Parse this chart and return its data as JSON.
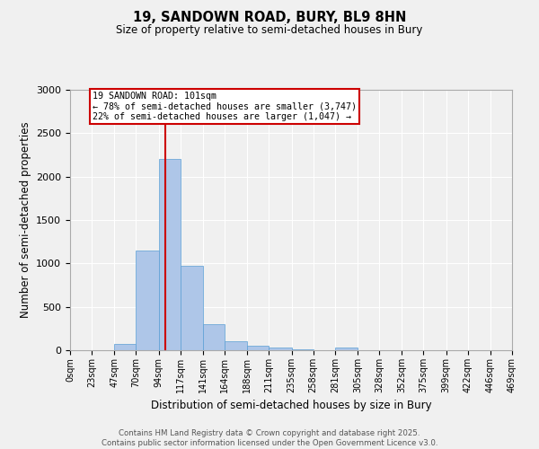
{
  "title": "19, SANDOWN ROAD, BURY, BL9 8HN",
  "subtitle": "Size of property relative to semi-detached houses in Bury",
  "xlabel": "Distribution of semi-detached houses by size in Bury",
  "ylabel": "Number of semi-detached properties",
  "property_size": 101,
  "property_label": "19 SANDOWN ROAD: 101sqm",
  "pct_smaller": 78,
  "pct_larger": 22,
  "count_smaller": "3,747",
  "count_larger": "1,047",
  "bin_edges": [
    0,
    23,
    47,
    70,
    94,
    117,
    141,
    164,
    188,
    211,
    235,
    258,
    281,
    305,
    328,
    352,
    375,
    399,
    422,
    446,
    469
  ],
  "bar_heights": [
    0,
    0,
    75,
    1150,
    2200,
    975,
    300,
    100,
    55,
    30,
    10,
    5,
    30,
    2,
    1,
    1,
    0,
    0,
    0,
    0
  ],
  "bar_color": "#aec6e8",
  "bar_edge_color": "#5a9fd4",
  "red_line_x": 101,
  "ylim": [
    0,
    3000
  ],
  "yticks": [
    0,
    500,
    1000,
    1500,
    2000,
    2500,
    3000
  ],
  "background_color": "#f0f0f0",
  "grid_color": "#ffffff",
  "annotation_box_color": "#ffffff",
  "annotation_box_edge": "#cc0000",
  "red_line_color": "#cc0000",
  "footer_line1": "Contains HM Land Registry data © Crown copyright and database right 2025.",
  "footer_line2": "Contains public sector information licensed under the Open Government Licence v3.0."
}
